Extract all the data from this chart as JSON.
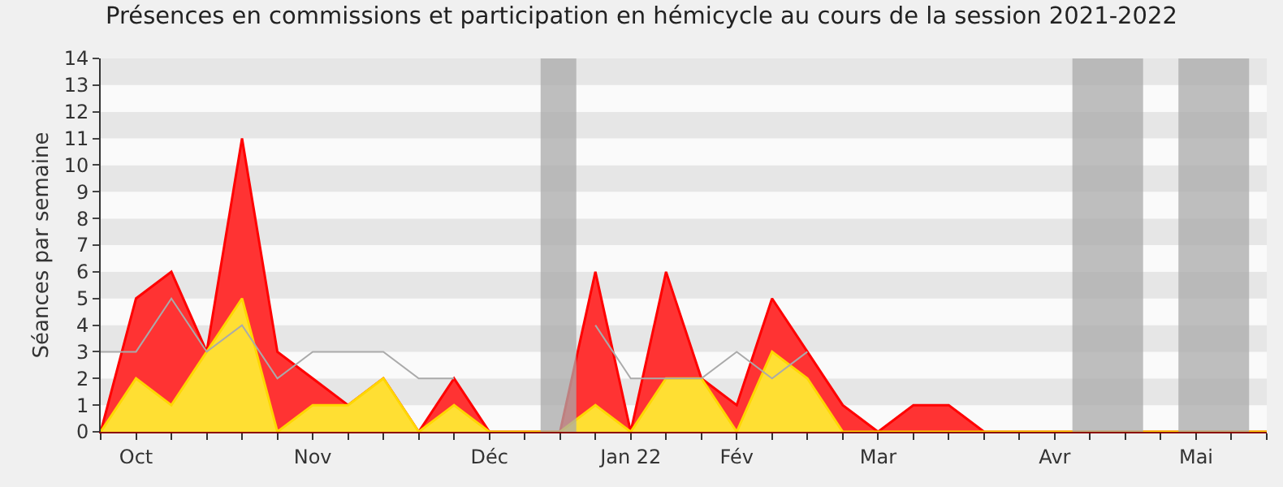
{
  "chart_data": {
    "type": "area",
    "title": "Présences en commissions et participation en hémicycle au cours de la session 2021-2022",
    "ylabel": "Séances par semaine",
    "categories": [
      null,
      "Oct",
      null,
      null,
      null,
      null,
      "Nov",
      null,
      null,
      null,
      null,
      "Déc",
      null,
      null,
      null,
      "Jan 22",
      null,
      null,
      "Fév",
      null,
      null,
      null,
      "Mar",
      null,
      null,
      null,
      null,
      "Avr",
      null,
      null,
      null,
      "Mai",
      null,
      null
    ],
    "series": [
      {
        "color": "#ff0000",
        "values": [
          0,
          5,
          6,
          3,
          11,
          3,
          2,
          1,
          2,
          0,
          2,
          0,
          0,
          0,
          6,
          0,
          6,
          2,
          1,
          5,
          3,
          1,
          0,
          1,
          1,
          0,
          0,
          0,
          0,
          0,
          0,
          0,
          0,
          0
        ]
      },
      {
        "color": "#ffd700",
        "values": [
          0,
          2,
          1,
          3,
          5,
          0,
          1,
          1,
          2,
          0,
          1,
          0,
          0,
          0,
          1,
          0,
          2,
          2,
          0,
          3,
          2,
          0,
          0,
          0,
          0,
          0,
          0,
          0,
          0,
          0,
          0,
          0,
          0,
          0
        ]
      },
      {
        "type": "line",
        "color": "#aaaaaa",
        "values": [
          3,
          3,
          5,
          3,
          4,
          2,
          3,
          3,
          3,
          2,
          2,
          null,
          null,
          null,
          4,
          2,
          2,
          2,
          3,
          2,
          3,
          null,
          null,
          null,
          null,
          null,
          null,
          null,
          null,
          null,
          null,
          null,
          null,
          null
        ]
      }
    ],
    "ylim": [
      0,
      14
    ],
    "yticks": [
      0,
      1,
      2,
      3,
      4,
      5,
      6,
      7,
      8,
      9,
      10,
      11,
      12,
      13,
      14
    ]
  }
}
